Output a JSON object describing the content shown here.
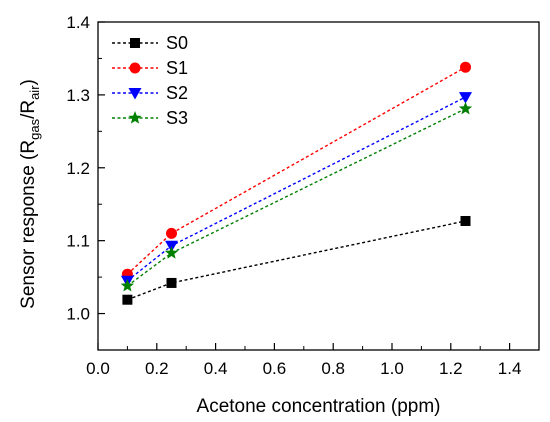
{
  "chart_data": {
    "type": "line",
    "xlabel": "Acetone concentration (ppm)",
    "ylabel": {
      "prefix": "Sensor response (R",
      "sub1": "gas",
      "mid": "/R",
      "sub2": "air",
      "suffix": ")"
    },
    "xlim": [
      0.0,
      1.5
    ],
    "ylim": [
      0.95,
      1.4
    ],
    "xticks": [
      0.0,
      0.2,
      0.4,
      0.6,
      0.8,
      1.0,
      1.2,
      1.4
    ],
    "xtick_labels": [
      "0.0",
      "0.2",
      "0.4",
      "0.6",
      "0.8",
      "1.0",
      "1.2",
      "1.4"
    ],
    "yticks": [
      1.0,
      1.1,
      1.2,
      1.3,
      1.4
    ],
    "ytick_labels": [
      "1.0",
      "1.1",
      "1.2",
      "1.3",
      "1.4"
    ],
    "grid": false,
    "legend": "top-left",
    "x": [
      0.1,
      0.25,
      1.25
    ],
    "series": [
      {
        "name": "S0",
        "values": [
          1.019,
          1.042,
          1.127
        ],
        "color": "#000000",
        "marker": "square"
      },
      {
        "name": "S1",
        "values": [
          1.054,
          1.11,
          1.338
        ],
        "color": "#ff0000",
        "marker": "circle"
      },
      {
        "name": "S2",
        "values": [
          1.045,
          1.093,
          1.297
        ],
        "color": "#0000ff",
        "marker": "triangle-down"
      },
      {
        "name": "S3",
        "values": [
          1.038,
          1.083,
          1.281
        ],
        "color": "#008000",
        "marker": "star"
      }
    ]
  }
}
